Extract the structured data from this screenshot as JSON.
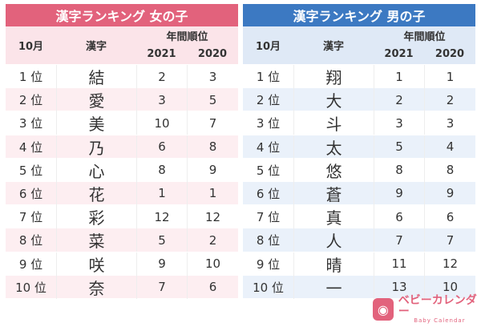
{
  "girls": {
    "title": "漢字ランキング 女の子",
    "month": "10月",
    "kanji_header": "漢字",
    "rank_header": "年間順位",
    "year1": "2021",
    "year2": "2020",
    "rows": [
      {
        "rank": "1 位",
        "kanji": "結",
        "y2021": "2",
        "y2020": "3"
      },
      {
        "rank": "2 位",
        "kanji": "愛",
        "y2021": "3",
        "y2020": "5"
      },
      {
        "rank": "3 位",
        "kanji": "美",
        "y2021": "10",
        "y2020": "7"
      },
      {
        "rank": "4 位",
        "kanji": "乃",
        "y2021": "6",
        "y2020": "8"
      },
      {
        "rank": "5 位",
        "kanji": "心",
        "y2021": "8",
        "y2020": "9"
      },
      {
        "rank": "6 位",
        "kanji": "花",
        "y2021": "1",
        "y2020": "1"
      },
      {
        "rank": "7 位",
        "kanji": "彩",
        "y2021": "12",
        "y2020": "12"
      },
      {
        "rank": "8 位",
        "kanji": "菜",
        "y2021": "5",
        "y2020": "2"
      },
      {
        "rank": "9 位",
        "kanji": "咲",
        "y2021": "9",
        "y2020": "10"
      },
      {
        "rank": "10 位",
        "kanji": "奈",
        "y2021": "7",
        "y2020": "6"
      }
    ]
  },
  "boys": {
    "title": "漢字ランキング 男の子",
    "month": "10月",
    "kanji_header": "漢字",
    "rank_header": "年間順位",
    "year1": "2021",
    "year2": "2020",
    "rows": [
      {
        "rank": "1 位",
        "kanji": "翔",
        "y2021": "1",
        "y2020": "1"
      },
      {
        "rank": "2 位",
        "kanji": "大",
        "y2021": "2",
        "y2020": "2"
      },
      {
        "rank": "3 位",
        "kanji": "斗",
        "y2021": "3",
        "y2020": "3"
      },
      {
        "rank": "4 位",
        "kanji": "太",
        "y2021": "5",
        "y2020": "4"
      },
      {
        "rank": "5 位",
        "kanji": "悠",
        "y2021": "8",
        "y2020": "8"
      },
      {
        "rank": "6 位",
        "kanji": "蒼",
        "y2021": "9",
        "y2020": "9"
      },
      {
        "rank": "7 位",
        "kanji": "真",
        "y2021": "6",
        "y2020": "6"
      },
      {
        "rank": "8 位",
        "kanji": "人",
        "y2021": "7",
        "y2020": "7"
      },
      {
        "rank": "9 位",
        "kanji": "晴",
        "y2021": "11",
        "y2020": "12"
      },
      {
        "rank": "10 位",
        "kanji": "一",
        "y2021": "13",
        "y2020": "10"
      }
    ]
  },
  "logo": {
    "text": "ベビーカレンダー",
    "sub": "Baby Calendar"
  }
}
